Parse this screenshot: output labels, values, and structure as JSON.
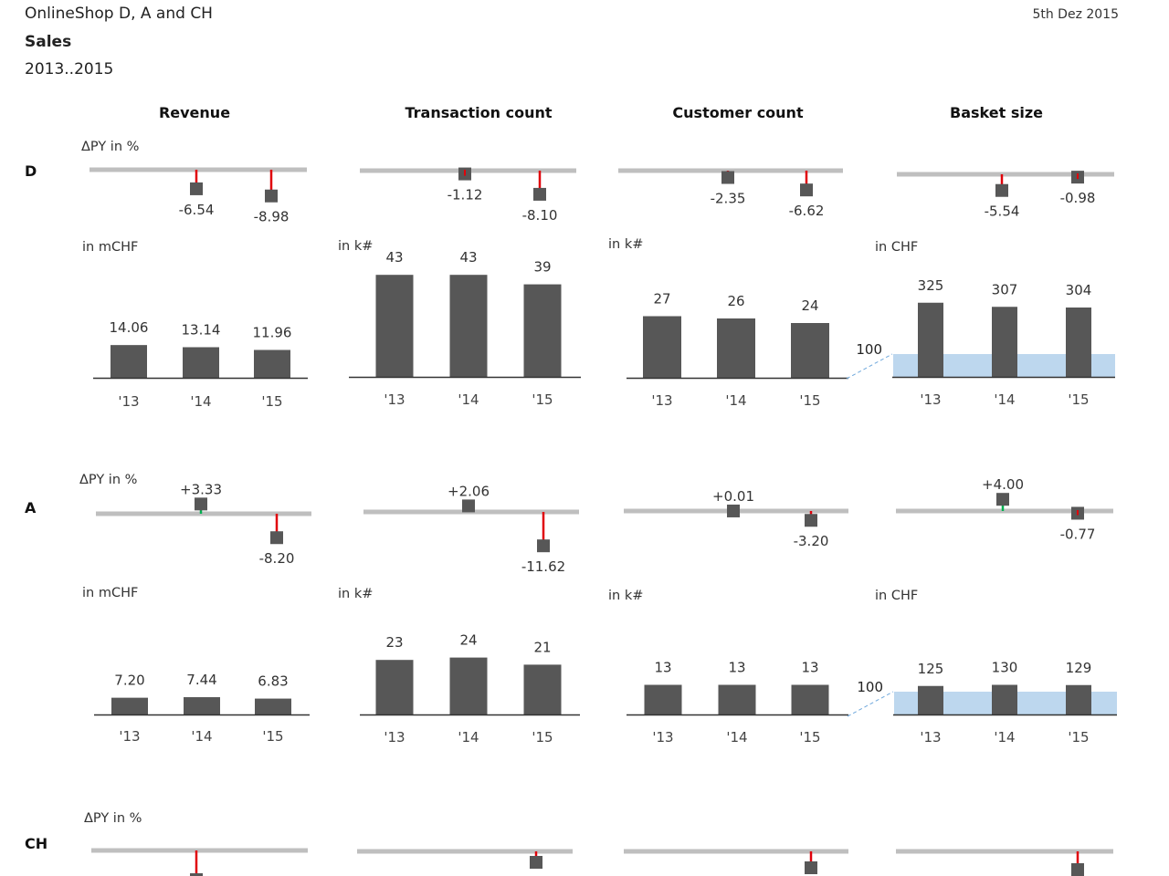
{
  "header": {
    "company": "OnlineShop D, A and CH",
    "title": "Sales",
    "period": "2013..2015",
    "date": "5th Dez 2015"
  },
  "colors": {
    "bar": "#575757",
    "axis": "#333333",
    "baseline": "#bfbfbf",
    "negative": "#e0000a",
    "positive": "#00b050",
    "reference_band": "#bdd7ee",
    "reference_link": "#6fa8dc"
  },
  "labels": {
    "delta_caption": "ΔPY in %",
    "reference_value": "100"
  },
  "chart_data": {
    "type": "bar",
    "title": "Sales",
    "categories": [
      "'13",
      "'14",
      "'15"
    ],
    "measures": [
      {
        "name": "Revenue",
        "unit": "in mCHF"
      },
      {
        "name": "Transaction count",
        "unit": "in k#"
      },
      {
        "name": "Customer count",
        "unit": "in k#"
      },
      {
        "name": "Basket size",
        "unit": "in CHF",
        "reference_line": 100
      }
    ],
    "regions": [
      {
        "name": "D",
        "delta_py_pct": [
          [
            "-6.54",
            "-8.98"
          ],
          [
            "-1.12",
            "-8.10"
          ],
          [
            "-2.35",
            "-6.62"
          ],
          [
            "-5.54",
            "-0.98"
          ]
        ],
        "values": [
          [
            "14.06",
            "13.14",
            "11.96"
          ],
          [
            "43",
            "43",
            "39"
          ],
          [
            "27",
            "26",
            "24"
          ],
          [
            "325",
            "307",
            "304"
          ]
        ]
      },
      {
        "name": "A",
        "delta_py_pct": [
          [
            "+3.33",
            "-8.20"
          ],
          [
            "+2.06",
            "-11.62"
          ],
          [
            "+0.01",
            "-3.20"
          ],
          [
            "+4.00",
            "-0.77"
          ]
        ],
        "values": [
          [
            "7.20",
            "7.44",
            "6.83"
          ],
          [
            "23",
            "24",
            "21"
          ],
          [
            "13",
            "13",
            "13"
          ],
          [
            "125",
            "130",
            "129"
          ]
        ]
      },
      {
        "name": "CH",
        "delta_py_pct": [
          [
            null,
            null
          ],
          [
            null,
            null
          ],
          [
            null,
            null
          ],
          [
            null,
            null
          ]
        ],
        "values": []
      }
    ]
  }
}
